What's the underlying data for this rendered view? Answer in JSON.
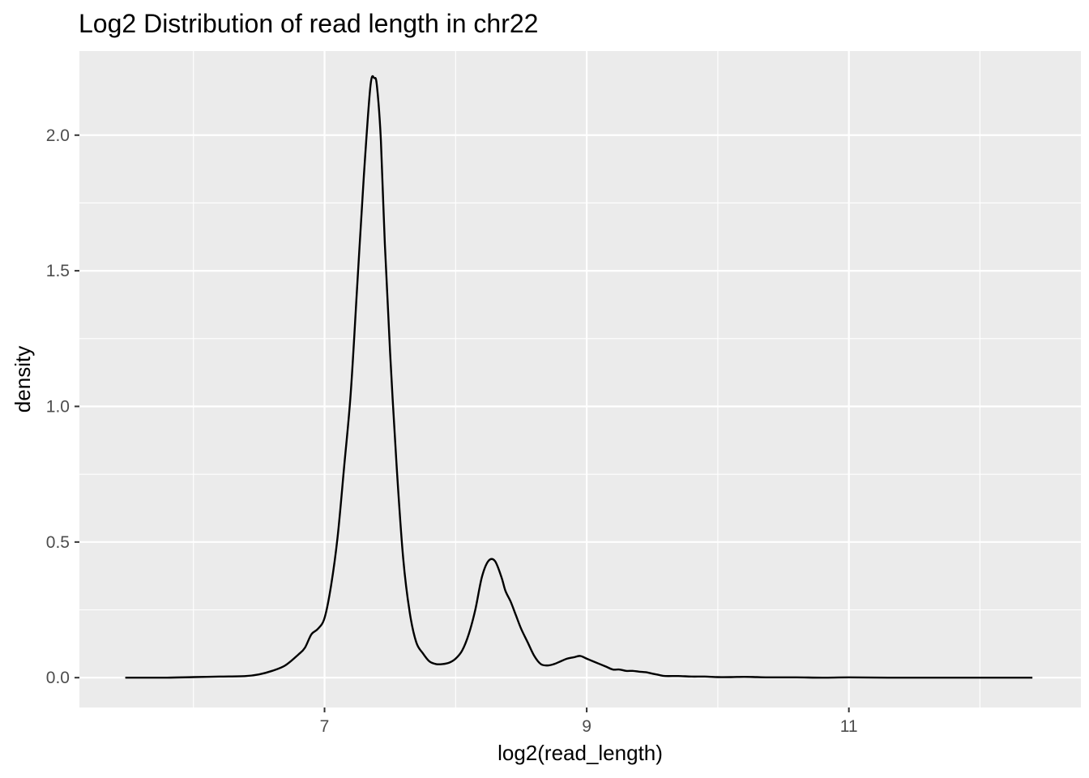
{
  "chart_data": {
    "type": "line",
    "title": "Log2 Distribution of read length in chr22",
    "xlabel": "log2(read_length)",
    "ylabel": "density",
    "xlim": [
      5.13,
      12.77
    ],
    "ylim": [
      -0.11,
      2.31
    ],
    "x_ticks": [
      7,
      9,
      11
    ],
    "x_tick_labels": [
      "7",
      "9",
      "11"
    ],
    "x_minor_ticks": [
      6,
      8,
      10,
      12
    ],
    "y_ticks": [
      0.0,
      0.5,
      1.0,
      1.5,
      2.0
    ],
    "y_tick_labels": [
      "0.0",
      "0.5",
      "1.0",
      "1.5",
      "2.0"
    ],
    "y_minor_ticks": [
      0.25,
      0.75,
      1.25,
      1.75
    ],
    "grid": true,
    "background": "#ebebeb",
    "line_color": "#000000",
    "series": [
      {
        "x": [
          5.48,
          5.6,
          5.8,
          6.0,
          6.2,
          6.4,
          6.5,
          6.6,
          6.7,
          6.8,
          6.85,
          6.9,
          6.95,
          7.0,
          7.05,
          7.1,
          7.15,
          7.2,
          7.25,
          7.3,
          7.35,
          7.38,
          7.4,
          7.43,
          7.46,
          7.5,
          7.55,
          7.6,
          7.65,
          7.7,
          7.75,
          7.8,
          7.85,
          7.9,
          7.95,
          8.0,
          8.05,
          8.1,
          8.15,
          8.2,
          8.25,
          8.3,
          8.35,
          8.38,
          8.42,
          8.46,
          8.5,
          8.55,
          8.6,
          8.65,
          8.7,
          8.75,
          8.8,
          8.85,
          8.9,
          8.95,
          9.0,
          9.05,
          9.1,
          9.15,
          9.2,
          9.25,
          9.3,
          9.35,
          9.4,
          9.45,
          9.5,
          9.55,
          9.6,
          9.7,
          9.8,
          9.9,
          10.0,
          10.1,
          10.2,
          10.3,
          10.4,
          10.6,
          10.8,
          11.0,
          11.3,
          11.6,
          12.0,
          12.4
        ],
        "y": [
          0.0,
          0.0,
          0.0,
          0.002,
          0.004,
          0.006,
          0.012,
          0.025,
          0.045,
          0.085,
          0.11,
          0.16,
          0.18,
          0.22,
          0.34,
          0.52,
          0.78,
          1.05,
          1.45,
          1.85,
          2.18,
          2.21,
          2.18,
          1.98,
          1.6,
          1.2,
          0.78,
          0.44,
          0.24,
          0.13,
          0.09,
          0.06,
          0.05,
          0.05,
          0.055,
          0.07,
          0.1,
          0.16,
          0.25,
          0.37,
          0.43,
          0.43,
          0.37,
          0.32,
          0.28,
          0.23,
          0.18,
          0.13,
          0.08,
          0.05,
          0.045,
          0.05,
          0.06,
          0.07,
          0.075,
          0.08,
          0.07,
          0.06,
          0.05,
          0.04,
          0.03,
          0.03,
          0.025,
          0.025,
          0.022,
          0.02,
          0.015,
          0.01,
          0.006,
          0.006,
          0.004,
          0.004,
          0.002,
          0.002,
          0.003,
          0.002,
          0.001,
          0.001,
          0.0,
          0.001,
          0.0,
          0.0,
          0.0,
          0.0
        ]
      }
    ]
  }
}
